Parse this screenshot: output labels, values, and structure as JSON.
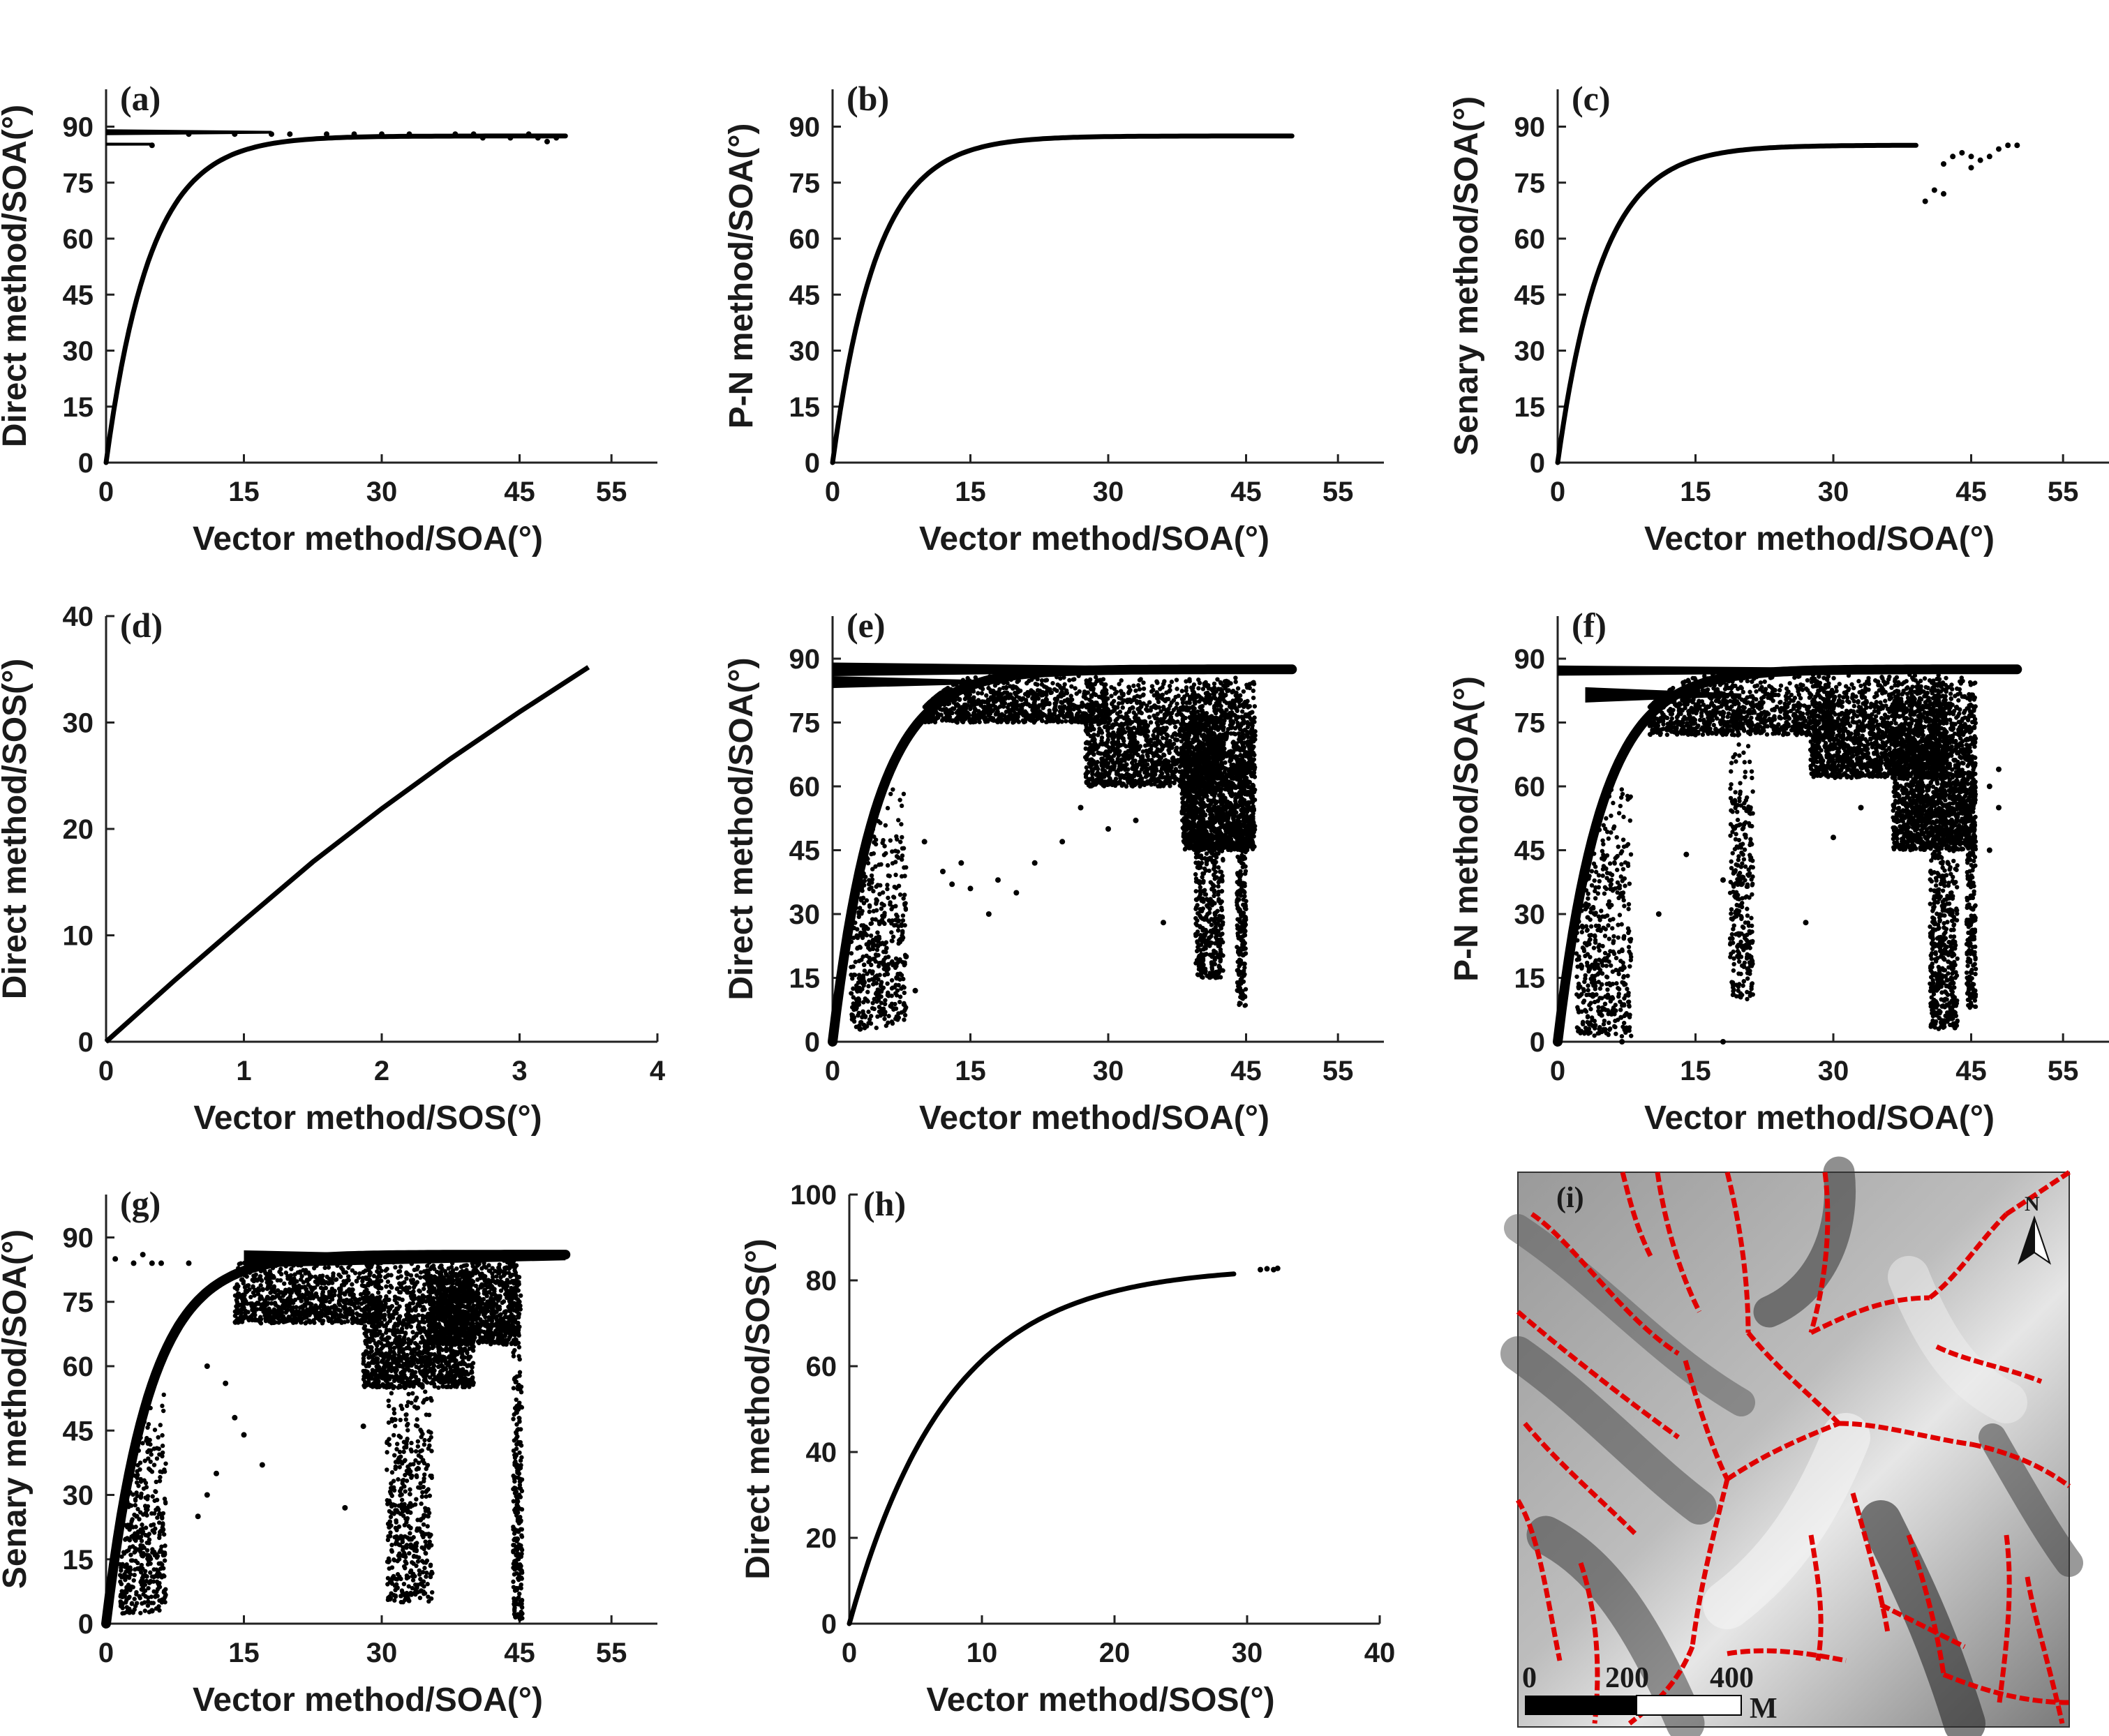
{
  "chart_data": [
    {
      "id": "a",
      "type": "scatter",
      "tag": "(a)",
      "xlabel": "Vector method/SOA(°)",
      "ylabel": "Direct method/SOA(°)",
      "xlim": [
        0,
        60
      ],
      "ylim": [
        0,
        100
      ],
      "xticks": [
        0,
        15,
        30,
        45,
        55
      ],
      "yticks": [
        0,
        15,
        30,
        45,
        60,
        75,
        90
      ],
      "curve": {
        "x_max": 50,
        "y_max": 87.5
      },
      "bands": [
        {
          "x_from": 0,
          "x_to": 18,
          "y": 88.5,
          "spread": 0.8
        },
        {
          "x_from": 0,
          "x_to": 5,
          "y": 85.3,
          "spread": 0.4
        }
      ],
      "scatter": [
        [
          5,
          85
        ],
        [
          9,
          88
        ],
        [
          14,
          88
        ],
        [
          18,
          88
        ],
        [
          20,
          88
        ],
        [
          24,
          88
        ],
        [
          27,
          88
        ],
        [
          30,
          88
        ],
        [
          33,
          88
        ],
        [
          38,
          88
        ],
        [
          40,
          88
        ],
        [
          41,
          87
        ],
        [
          44,
          87
        ],
        [
          46,
          88
        ],
        [
          47,
          87
        ],
        [
          48,
          86
        ],
        [
          49,
          87
        ]
      ]
    },
    {
      "id": "b",
      "type": "scatter",
      "tag": "(b)",
      "xlabel": "Vector method/SOA(°)",
      "ylabel": "P-N method/SOA(°)",
      "xlim": [
        0,
        60
      ],
      "ylim": [
        0,
        100
      ],
      "xticks": [
        0,
        15,
        30,
        45,
        55
      ],
      "yticks": [
        0,
        15,
        30,
        45,
        60,
        75,
        90
      ],
      "curve": {
        "x_max": 50,
        "y_max": 87.5
      },
      "bands": [],
      "scatter": []
    },
    {
      "id": "c",
      "type": "scatter",
      "tag": "(c)",
      "xlabel": "Vector method/SOA(°)",
      "ylabel": "Senary method/SOA(°)",
      "xlim": [
        0,
        60
      ],
      "ylim": [
        0,
        100
      ],
      "xticks": [
        0,
        15,
        30,
        45,
        55
      ],
      "yticks": [
        0,
        15,
        30,
        45,
        60,
        75,
        90
      ],
      "curve": {
        "x_max": 39,
        "y_max": 85
      },
      "bands": [],
      "scatter": [
        [
          42,
          80
        ],
        [
          43,
          82
        ],
        [
          44,
          83
        ],
        [
          45,
          82
        ],
        [
          46,
          81
        ],
        [
          47,
          82
        ],
        [
          48,
          84
        ],
        [
          49,
          85
        ],
        [
          50,
          85
        ],
        [
          41,
          73
        ],
        [
          40,
          70
        ],
        [
          42,
          72
        ],
        [
          45,
          79
        ]
      ]
    },
    {
      "id": "d",
      "type": "line",
      "tag": "(d)",
      "xlabel": "Vector method/SOS(°)",
      "ylabel": "Direct method/SOS(°)",
      "xlim": [
        0,
        4
      ],
      "ylim": [
        0,
        40
      ],
      "xticks": [
        0,
        1,
        2,
        3,
        4
      ],
      "yticks": [
        0,
        10,
        20,
        30,
        40
      ],
      "line": {
        "x": [
          0,
          0.5,
          1,
          1.5,
          2,
          2.5,
          3,
          3.5
        ],
        "y": [
          0,
          5.8,
          11.4,
          16.9,
          21.9,
          26.6,
          31.0,
          35.2
        ]
      }
    },
    {
      "id": "e",
      "type": "scatter",
      "tag": "(e)",
      "xlabel": "Vector method/SOA(°)",
      "ylabel": "Direct method/SOA(°)",
      "xlim": [
        0,
        60
      ],
      "ylim": [
        0,
        100
      ],
      "xticks": [
        0,
        15,
        30,
        45,
        55
      ],
      "yticks": [
        0,
        15,
        30,
        45,
        60,
        75,
        90
      ],
      "curve": {
        "x_max": 50,
        "y_max": 87.5
      },
      "bands": [
        {
          "x_from": 0,
          "x_to": 50,
          "y": 87.5,
          "spread": 1.6
        },
        {
          "x_from": 0,
          "x_to": 19,
          "y": 84.5,
          "spread": 1.4
        }
      ],
      "clouds": [
        {
          "cx": 42,
          "w": 8,
          "ytop": 86,
          "ybot": 45,
          "n": 1700
        },
        {
          "cx": 41,
          "w": 3,
          "ytop": 60,
          "ybot": 15,
          "n": 400
        },
        {
          "cx": 44.5,
          "w": 1,
          "ytop": 80,
          "ybot": 8,
          "n": 250
        },
        {
          "cx": 35,
          "w": 15,
          "ytop": 86,
          "ybot": 60,
          "n": 1400
        },
        {
          "cx": 20,
          "w": 20,
          "ytop": 86,
          "ybot": 75,
          "n": 900
        },
        {
          "cx": 5,
          "w": 6,
          "ytop": 60,
          "ybot": 3,
          "n": 500
        }
      ],
      "scatter": [
        [
          10,
          47
        ],
        [
          12,
          40
        ],
        [
          14,
          42
        ],
        [
          13,
          37
        ],
        [
          15,
          36
        ],
        [
          17,
          30
        ],
        [
          20,
          35
        ],
        [
          22,
          42
        ],
        [
          25,
          47
        ],
        [
          27,
          55
        ],
        [
          30,
          50
        ],
        [
          33,
          52
        ],
        [
          36,
          28
        ],
        [
          8,
          20
        ],
        [
          7,
          15
        ],
        [
          9,
          12
        ],
        [
          3,
          3
        ],
        [
          18,
          38
        ]
      ]
    },
    {
      "id": "f",
      "type": "scatter",
      "tag": "(f)",
      "xlabel": "Vector method/SOA(°)",
      "ylabel": "P-N method/SOA(°)",
      "xlim": [
        0,
        60
      ],
      "ylim": [
        0,
        100
      ],
      "xticks": [
        0,
        15,
        30,
        45,
        55
      ],
      "yticks": [
        0,
        15,
        30,
        45,
        60,
        75,
        90
      ],
      "curve": {
        "x_max": 50,
        "y_max": 87.5
      },
      "bands": [
        {
          "x_from": 0,
          "x_to": 50,
          "y": 87.2,
          "spread": 1.2
        },
        {
          "x_from": 3,
          "x_to": 20,
          "y": 81.5,
          "spread": 1.8
        }
      ],
      "clouds": [
        {
          "cx": 41,
          "w": 9,
          "ytop": 86,
          "ybot": 45,
          "n": 1700
        },
        {
          "cx": 42,
          "w": 3,
          "ytop": 55,
          "ybot": 3,
          "n": 500
        },
        {
          "cx": 45,
          "w": 1,
          "ytop": 82,
          "ybot": 8,
          "n": 250
        },
        {
          "cx": 20,
          "w": 2.5,
          "ytop": 75,
          "ybot": 10,
          "n": 300
        },
        {
          "cx": 35,
          "w": 15,
          "ytop": 87,
          "ybot": 62,
          "n": 1500
        },
        {
          "cx": 20,
          "w": 20,
          "ytop": 87,
          "ybot": 72,
          "n": 1000
        },
        {
          "cx": 5,
          "w": 6,
          "ytop": 60,
          "ybot": 1,
          "n": 500
        }
      ],
      "scatter": [
        [
          18,
          38
        ],
        [
          20,
          37
        ],
        [
          27,
          28
        ],
        [
          30,
          48
        ],
        [
          47,
          45
        ],
        [
          48,
          64
        ],
        [
          48,
          55
        ],
        [
          47,
          60
        ],
        [
          7,
          0
        ],
        [
          18,
          0
        ],
        [
          33,
          55
        ],
        [
          11,
          30
        ],
        [
          14,
          44
        ]
      ]
    },
    {
      "id": "g",
      "type": "scatter",
      "tag": "(g)",
      "xlabel": "Vector method/SOA(°)",
      "ylabel": "Senary method/SOA(°)",
      "xlim": [
        0,
        60
      ],
      "ylim": [
        0,
        100
      ],
      "xticks": [
        0,
        15,
        30,
        45,
        55
      ],
      "yticks": [
        0,
        15,
        30,
        45,
        60,
        75,
        90
      ],
      "curve": {
        "x_max": 50,
        "y_max": 86
      },
      "bands": [
        {
          "x_from": 15,
          "x_to": 50,
          "y": 85,
          "spread": 2
        }
      ],
      "clouds": [
        {
          "cx": 34,
          "w": 12,
          "ytop": 85,
          "ybot": 55,
          "n": 1400
        },
        {
          "cx": 33,
          "w": 5,
          "ytop": 60,
          "ybot": 5,
          "n": 450
        },
        {
          "cx": 44.8,
          "w": 1,
          "ytop": 80,
          "ybot": 1,
          "n": 250
        },
        {
          "cx": 40,
          "w": 10,
          "ytop": 86,
          "ybot": 65,
          "n": 1100
        },
        {
          "cx": 22,
          "w": 16,
          "ytop": 86,
          "ybot": 70,
          "n": 900
        },
        {
          "cx": 4,
          "w": 5,
          "ytop": 55,
          "ybot": 2,
          "n": 450
        }
      ],
      "scatter": [
        [
          1,
          85
        ],
        [
          3,
          84
        ],
        [
          4,
          86
        ],
        [
          5,
          84
        ],
        [
          6,
          84
        ],
        [
          9,
          84
        ],
        [
          11,
          60
        ],
        [
          13,
          56
        ],
        [
          14,
          48
        ],
        [
          15,
          44
        ],
        [
          12,
          35
        ],
        [
          11,
          30
        ],
        [
          10,
          25
        ],
        [
          26,
          27
        ],
        [
          28,
          46
        ],
        [
          17,
          37
        ],
        [
          5,
          3
        ]
      ]
    },
    {
      "id": "h",
      "type": "scatter",
      "tag": "(h)",
      "xlabel": "Vector method/SOS(°)",
      "ylabel": "Direct method/SOS(°)",
      "xlim": [
        0,
        40
      ],
      "ylim": [
        0,
        100
      ],
      "xticks": [
        0,
        10,
        20,
        30,
        40
      ],
      "yticks": [
        0,
        20,
        40,
        60,
        80,
        100
      ],
      "curve": {
        "x_max": 29,
        "y_max": 81.5,
        "kind": "sos"
      },
      "scatter": [
        [
          31,
          82.5
        ],
        [
          31.5,
          82.7
        ],
        [
          32,
          82.5
        ],
        [
          32.3,
          82.8
        ]
      ]
    }
  ],
  "map": {
    "tag": "(i)",
    "north": "N",
    "scale": [
      "0",
      "200",
      "400"
    ],
    "unit": "M"
  }
}
